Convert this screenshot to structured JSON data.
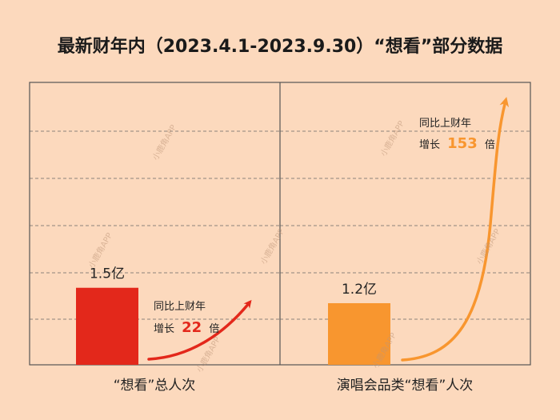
{
  "title": "最新财年内（2023.4.1-2023.9.30）“想看”部分数据",
  "watermark": "小鹿角APP",
  "colors": {
    "background": "#fcd9bd",
    "bar_left": "#e3281b",
    "bar_right": "#f8962f",
    "growth_left": "#e3281b",
    "growth_right": "#f8962f"
  },
  "chart_data": [
    {
      "type": "bar",
      "category": "“想看”总人次",
      "value": 1.5,
      "value_label": "1.5亿",
      "unit": "亿",
      "ylim": [
        0,
        5.5
      ],
      "growth": {
        "line1": "同比上财年",
        "prefix": "增长",
        "number": "22",
        "suffix": "倍"
      }
    },
    {
      "type": "bar",
      "category": "演唱会品类“想看”人次",
      "value": 1.2,
      "value_label": "1.2亿",
      "unit": "亿",
      "ylim": [
        0,
        5.5
      ],
      "growth": {
        "line1": "同比上财年",
        "prefix": "增长",
        "number": "153",
        "suffix": "倍"
      }
    }
  ]
}
